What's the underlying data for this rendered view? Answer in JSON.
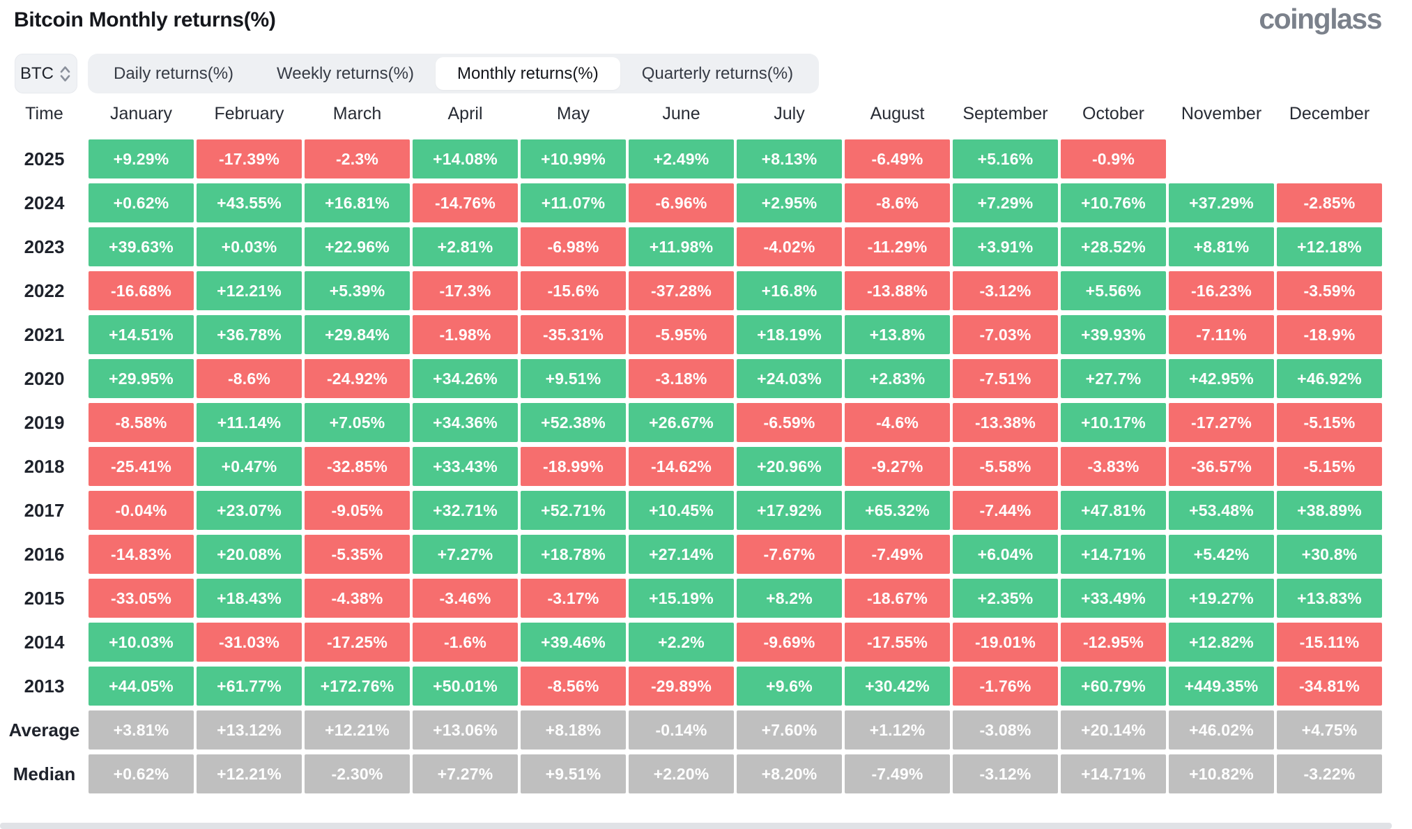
{
  "header": {
    "title": "Bitcoin Monthly returns(%)",
    "logo": "coinglass"
  },
  "controls": {
    "coin": "BTC",
    "tabs": [
      {
        "label": "Daily returns(%)",
        "active": false
      },
      {
        "label": "Weekly returns(%)",
        "active": false
      },
      {
        "label": "Monthly returns(%)",
        "active": true
      },
      {
        "label": "Quarterly returns(%)",
        "active": false
      }
    ]
  },
  "colors": {
    "positive": "#4dc88d",
    "negative": "#f66e6e",
    "summary": "#bfbfbf"
  },
  "table": {
    "time_header": "Time",
    "months": [
      "January",
      "February",
      "March",
      "April",
      "May",
      "June",
      "July",
      "August",
      "September",
      "October",
      "November",
      "December"
    ],
    "rows": [
      {
        "label": "2025",
        "type": "year",
        "values": [
          "+9.29%",
          "-17.39%",
          "-2.3%",
          "+14.08%",
          "+10.99%",
          "+2.49%",
          "+8.13%",
          "-6.49%",
          "+5.16%",
          "-0.9%",
          "",
          ""
        ]
      },
      {
        "label": "2024",
        "type": "year",
        "values": [
          "+0.62%",
          "+43.55%",
          "+16.81%",
          "-14.76%",
          "+11.07%",
          "-6.96%",
          "+2.95%",
          "-8.6%",
          "+7.29%",
          "+10.76%",
          "+37.29%",
          "-2.85%"
        ]
      },
      {
        "label": "2023",
        "type": "year",
        "values": [
          "+39.63%",
          "+0.03%",
          "+22.96%",
          "+2.81%",
          "-6.98%",
          "+11.98%",
          "-4.02%",
          "-11.29%",
          "+3.91%",
          "+28.52%",
          "+8.81%",
          "+12.18%"
        ]
      },
      {
        "label": "2022",
        "type": "year",
        "values": [
          "-16.68%",
          "+12.21%",
          "+5.39%",
          "-17.3%",
          "-15.6%",
          "-37.28%",
          "+16.8%",
          "-13.88%",
          "-3.12%",
          "+5.56%",
          "-16.23%",
          "-3.59%"
        ]
      },
      {
        "label": "2021",
        "type": "year",
        "values": [
          "+14.51%",
          "+36.78%",
          "+29.84%",
          "-1.98%",
          "-35.31%",
          "-5.95%",
          "+18.19%",
          "+13.8%",
          "-7.03%",
          "+39.93%",
          "-7.11%",
          "-18.9%"
        ]
      },
      {
        "label": "2020",
        "type": "year",
        "values": [
          "+29.95%",
          "-8.6%",
          "-24.92%",
          "+34.26%",
          "+9.51%",
          "-3.18%",
          "+24.03%",
          "+2.83%",
          "-7.51%",
          "+27.7%",
          "+42.95%",
          "+46.92%"
        ]
      },
      {
        "label": "2019",
        "type": "year",
        "values": [
          "-8.58%",
          "+11.14%",
          "+7.05%",
          "+34.36%",
          "+52.38%",
          "+26.67%",
          "-6.59%",
          "-4.6%",
          "-13.38%",
          "+10.17%",
          "-17.27%",
          "-5.15%"
        ]
      },
      {
        "label": "2018",
        "type": "year",
        "values": [
          "-25.41%",
          "+0.47%",
          "-32.85%",
          "+33.43%",
          "-18.99%",
          "-14.62%",
          "+20.96%",
          "-9.27%",
          "-5.58%",
          "-3.83%",
          "-36.57%",
          "-5.15%"
        ]
      },
      {
        "label": "2017",
        "type": "year",
        "values": [
          "-0.04%",
          "+23.07%",
          "-9.05%",
          "+32.71%",
          "+52.71%",
          "+10.45%",
          "+17.92%",
          "+65.32%",
          "-7.44%",
          "+47.81%",
          "+53.48%",
          "+38.89%"
        ]
      },
      {
        "label": "2016",
        "type": "year",
        "values": [
          "-14.83%",
          "+20.08%",
          "-5.35%",
          "+7.27%",
          "+18.78%",
          "+27.14%",
          "-7.67%",
          "-7.49%",
          "+6.04%",
          "+14.71%",
          "+5.42%",
          "+30.8%"
        ]
      },
      {
        "label": "2015",
        "type": "year",
        "values": [
          "-33.05%",
          "+18.43%",
          "-4.38%",
          "-3.46%",
          "-3.17%",
          "+15.19%",
          "+8.2%",
          "-18.67%",
          "+2.35%",
          "+33.49%",
          "+19.27%",
          "+13.83%"
        ]
      },
      {
        "label": "2014",
        "type": "year",
        "values": [
          "+10.03%",
          "-31.03%",
          "-17.25%",
          "-1.6%",
          "+39.46%",
          "+2.2%",
          "-9.69%",
          "-17.55%",
          "-19.01%",
          "-12.95%",
          "+12.82%",
          "-15.11%"
        ]
      },
      {
        "label": "2013",
        "type": "year",
        "values": [
          "+44.05%",
          "+61.77%",
          "+172.76%",
          "+50.01%",
          "-8.56%",
          "-29.89%",
          "+9.6%",
          "+30.42%",
          "-1.76%",
          "+60.79%",
          "+449.35%",
          "-34.81%"
        ]
      },
      {
        "label": "Average",
        "type": "summary",
        "values": [
          "+3.81%",
          "+13.12%",
          "+12.21%",
          "+13.06%",
          "+8.18%",
          "-0.14%",
          "+7.60%",
          "+1.12%",
          "-3.08%",
          "+20.14%",
          "+46.02%",
          "+4.75%"
        ]
      },
      {
        "label": "Median",
        "type": "summary",
        "values": [
          "+0.62%",
          "+12.21%",
          "-2.30%",
          "+7.27%",
          "+9.51%",
          "+2.20%",
          "+8.20%",
          "-7.49%",
          "-3.12%",
          "+14.71%",
          "+10.82%",
          "-3.22%"
        ]
      }
    ]
  },
  "chart_data": {
    "type": "heatmap",
    "title": "Bitcoin Monthly returns(%)",
    "unit": "%",
    "columns": [
      "January",
      "February",
      "March",
      "April",
      "May",
      "June",
      "July",
      "August",
      "September",
      "October",
      "November",
      "December"
    ],
    "row_labels": [
      "2025",
      "2024",
      "2023",
      "2022",
      "2021",
      "2020",
      "2019",
      "2018",
      "2017",
      "2016",
      "2015",
      "2014",
      "2013",
      "Average",
      "Median"
    ],
    "values": [
      [
        9.29,
        -17.39,
        -2.3,
        14.08,
        10.99,
        2.49,
        8.13,
        -6.49,
        5.16,
        -0.9,
        null,
        null
      ],
      [
        0.62,
        43.55,
        16.81,
        -14.76,
        11.07,
        -6.96,
        2.95,
        -8.6,
        7.29,
        10.76,
        37.29,
        -2.85
      ],
      [
        39.63,
        0.03,
        22.96,
        2.81,
        -6.98,
        11.98,
        -4.02,
        -11.29,
        3.91,
        28.52,
        8.81,
        12.18
      ],
      [
        -16.68,
        12.21,
        5.39,
        -17.3,
        -15.6,
        -37.28,
        16.8,
        -13.88,
        -3.12,
        5.56,
        -16.23,
        -3.59
      ],
      [
        14.51,
        36.78,
        29.84,
        -1.98,
        -35.31,
        -5.95,
        18.19,
        13.8,
        -7.03,
        39.93,
        -7.11,
        -18.9
      ],
      [
        29.95,
        -8.6,
        -24.92,
        34.26,
        9.51,
        -3.18,
        24.03,
        2.83,
        -7.51,
        27.7,
        42.95,
        46.92
      ],
      [
        -8.58,
        11.14,
        7.05,
        34.36,
        52.38,
        26.67,
        -6.59,
        -4.6,
        -13.38,
        10.17,
        -17.27,
        -5.15
      ],
      [
        -25.41,
        0.47,
        -32.85,
        33.43,
        -18.99,
        -14.62,
        20.96,
        -9.27,
        -5.58,
        -3.83,
        -36.57,
        -5.15
      ],
      [
        -0.04,
        23.07,
        -9.05,
        32.71,
        52.71,
        10.45,
        17.92,
        65.32,
        -7.44,
        47.81,
        53.48,
        38.89
      ],
      [
        -14.83,
        20.08,
        -5.35,
        7.27,
        18.78,
        27.14,
        -7.67,
        -7.49,
        6.04,
        14.71,
        5.42,
        30.8
      ],
      [
        -33.05,
        18.43,
        -4.38,
        -3.46,
        -3.17,
        15.19,
        8.2,
        -18.67,
        2.35,
        33.49,
        19.27,
        13.83
      ],
      [
        10.03,
        -31.03,
        -17.25,
        -1.6,
        39.46,
        2.2,
        -9.69,
        -17.55,
        -19.01,
        -12.95,
        12.82,
        -15.11
      ],
      [
        44.05,
        61.77,
        172.76,
        50.01,
        -8.56,
        -29.89,
        9.6,
        30.42,
        -1.76,
        60.79,
        449.35,
        -34.81
      ],
      [
        3.81,
        13.12,
        12.21,
        13.06,
        8.18,
        -0.14,
        7.6,
        1.12,
        -3.08,
        20.14,
        46.02,
        4.75
      ],
      [
        0.62,
        12.21,
        -2.3,
        7.27,
        9.51,
        2.2,
        8.2,
        -7.49,
        -3.12,
        14.71,
        10.82,
        -3.22
      ]
    ],
    "legend": "green = positive monthly return, red = negative monthly return, gray = Average/Median summary rows"
  }
}
